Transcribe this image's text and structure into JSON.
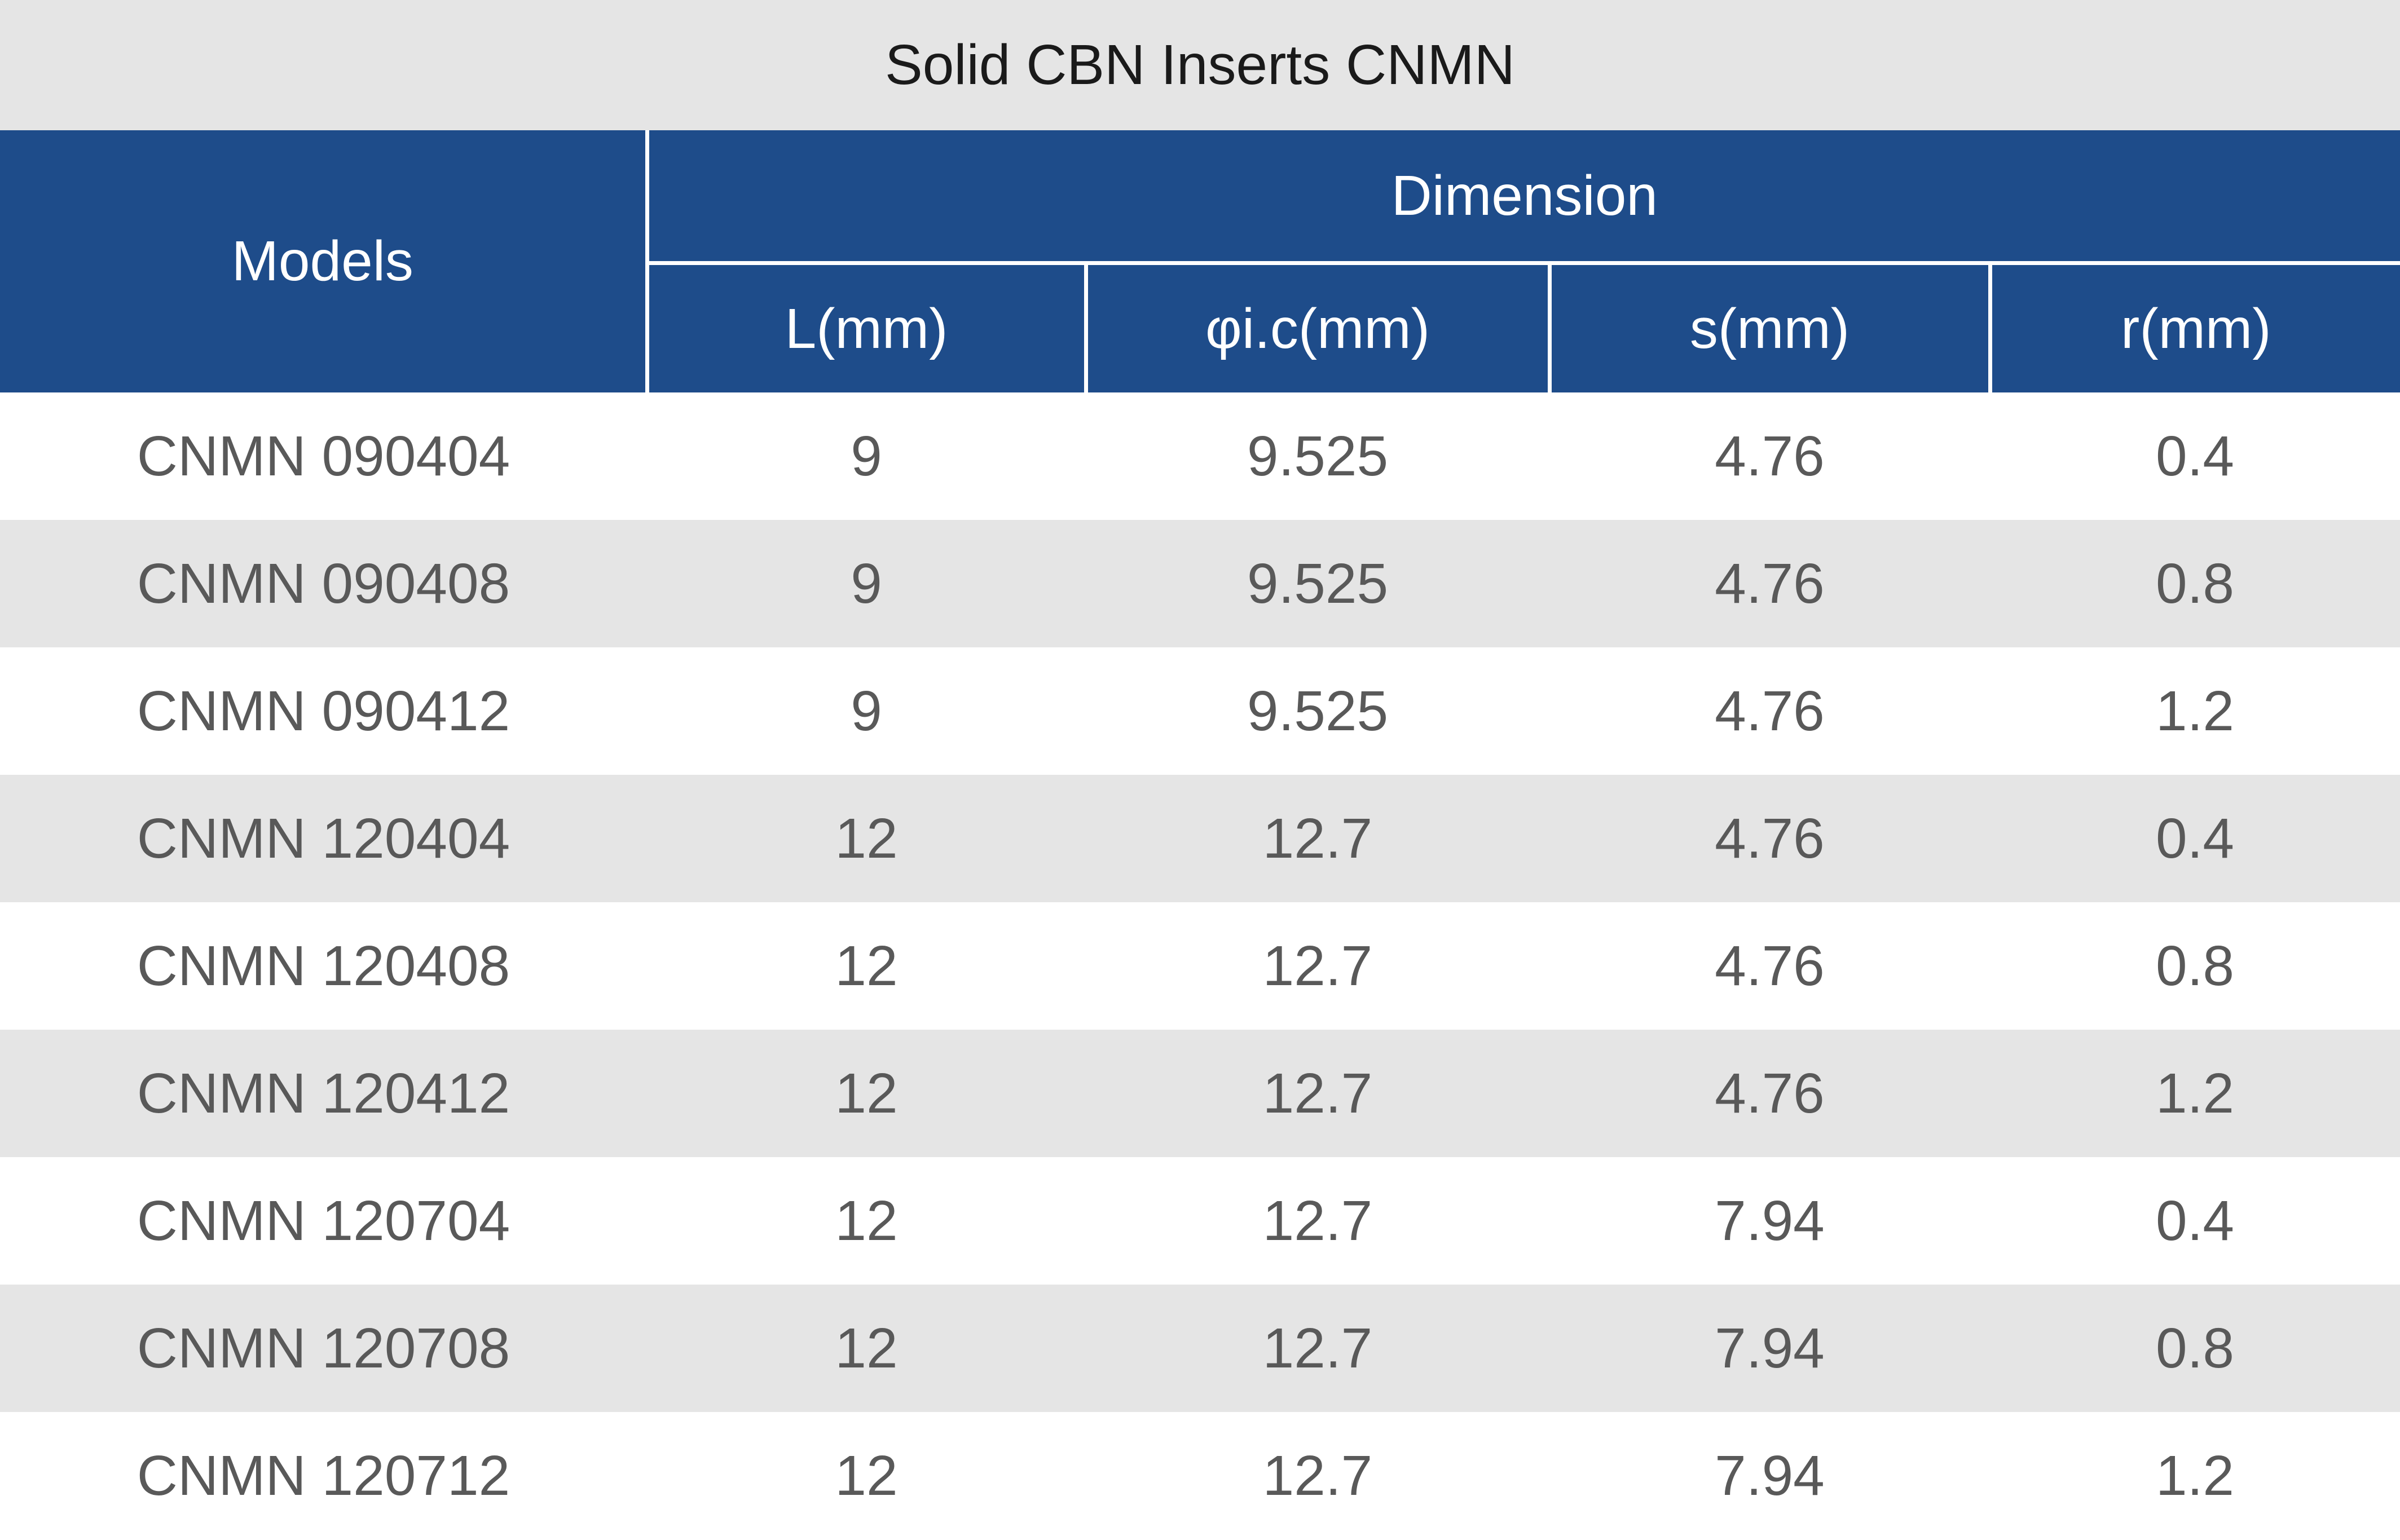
{
  "title": "Solid CBN Inserts CNMN",
  "colors": {
    "header_bg": "#1e4c8a",
    "title_bg": "#e5e5e5",
    "row_alt_bg": "#e5e5e5",
    "data_text": "#595959"
  },
  "table": {
    "models_header": "Models",
    "dimension_header": "Dimension",
    "sub_headers": [
      "L(mm)",
      "φi.c(mm)",
      "s(mm)",
      "r(mm)"
    ],
    "rows": [
      [
        "CNMN 090404",
        "9",
        "9.525",
        "4.76",
        "0.4"
      ],
      [
        "CNMN 090408",
        "9",
        "9.525",
        "4.76",
        "0.8"
      ],
      [
        "CNMN 090412",
        "9",
        "9.525",
        "4.76",
        "1.2"
      ],
      [
        "CNMN 120404",
        "12",
        "12.7",
        "4.76",
        "0.4"
      ],
      [
        "CNMN 120408",
        "12",
        "12.7",
        "4.76",
        "0.8"
      ],
      [
        "CNMN 120412",
        "12",
        "12.7",
        "4.76",
        "1.2"
      ],
      [
        "CNMN 120704",
        "12",
        "12.7",
        "7.94",
        "0.4"
      ],
      [
        "CNMN 120708",
        "12",
        "12.7",
        "7.94",
        "0.8"
      ],
      [
        "CNMN 120712",
        "12",
        "12.7",
        "7.94",
        "1.2"
      ]
    ]
  }
}
